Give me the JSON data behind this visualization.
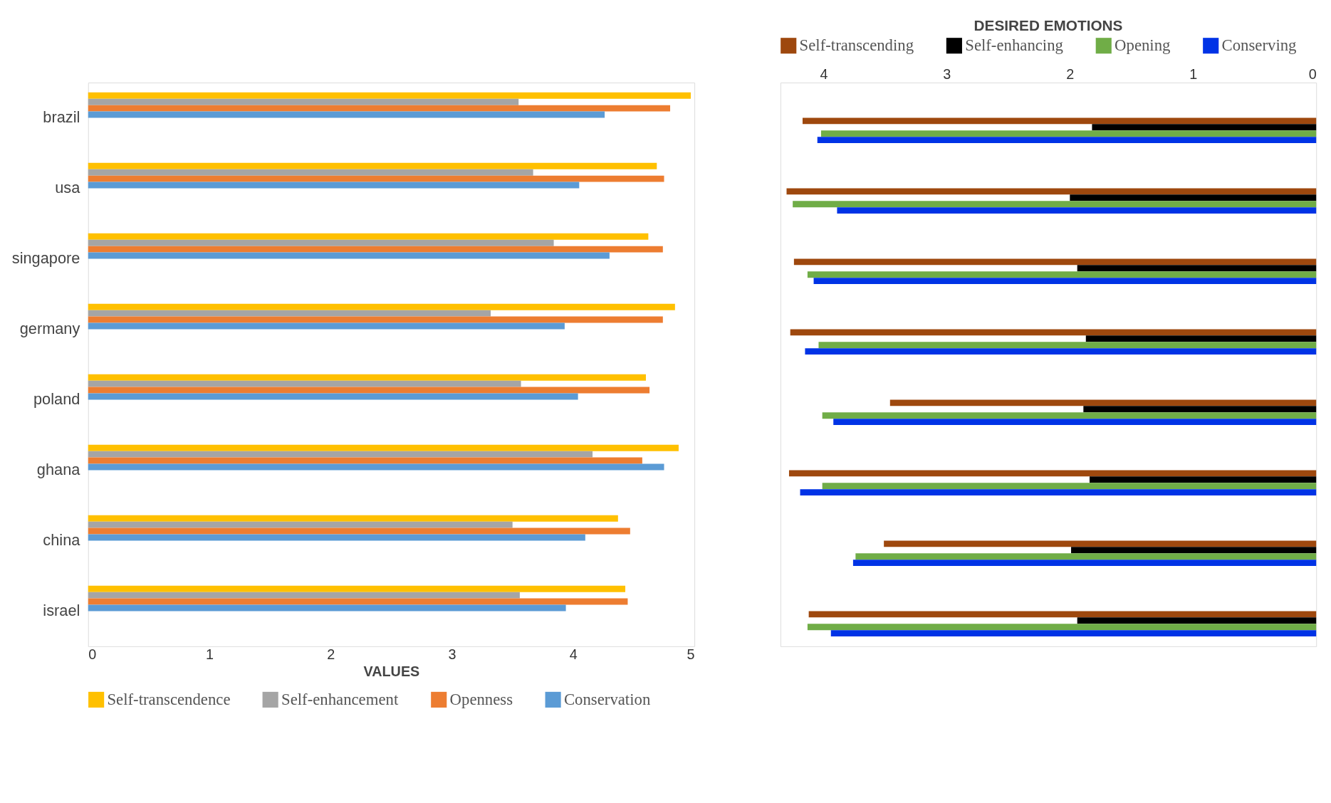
{
  "chart_data": [
    {
      "type": "bar",
      "orientation": "horizontal",
      "xlabel": "VALUES",
      "legend": "bottom",
      "grid": false,
      "categories": [
        "brazil",
        "usa",
        "singapore",
        "germany",
        "poland",
        "ghana",
        "china",
        "israel"
      ],
      "xlim": [
        0,
        5
      ],
      "xticks": [
        0,
        1,
        2,
        3,
        4,
        5
      ],
      "series": [
        {
          "name": "Self-transcendence",
          "color": "#ffc000",
          "values": [
            4.97,
            4.69,
            4.62,
            4.84,
            4.6,
            4.87,
            4.37,
            4.43
          ]
        },
        {
          "name": "Self-enhancement",
          "color": "#a5a5a5",
          "values": [
            3.55,
            3.67,
            3.84,
            3.32,
            3.57,
            4.16,
            3.5,
            3.56
          ]
        },
        {
          "name": "Openness",
          "color": "#ed7d31",
          "values": [
            4.8,
            4.75,
            4.74,
            4.74,
            4.63,
            4.57,
            4.47,
            4.45
          ]
        },
        {
          "name": "Conservation",
          "color": "#5b9bd5",
          "values": [
            4.26,
            4.05,
            4.3,
            3.93,
            4.04,
            4.75,
            4.1,
            3.94
          ]
        }
      ]
    },
    {
      "type": "bar",
      "orientation": "horizontal",
      "title": "DESIRED EMOTIONS",
      "legend": "top",
      "grid": false,
      "tick_labels": "x",
      "categories": [
        null,
        null,
        null,
        null,
        null,
        null,
        null,
        null
      ],
      "xlim": [
        4.35,
        0
      ],
      "xticks": [
        4,
        3,
        2,
        1,
        0
      ],
      "series": [
        {
          "name": "Self-transcending",
          "color": "#9e480e",
          "values": [
            4.17,
            4.3,
            4.24,
            4.27,
            3.46,
            4.28,
            3.51,
            4.12
          ]
        },
        {
          "name": "Self-enhancing",
          "color": "#000000",
          "values": [
            1.82,
            2.0,
            1.94,
            1.87,
            1.89,
            1.84,
            1.99,
            1.94
          ]
        },
        {
          "name": "Opening",
          "color": "#70ad47",
          "values": [
            4.02,
            4.25,
            4.13,
            4.04,
            4.01,
            4.01,
            3.74,
            4.13
          ]
        },
        {
          "name": "Conserving",
          "color": "#0033e6",
          "values": [
            4.05,
            3.89,
            4.08,
            4.15,
            3.92,
            4.19,
            3.76,
            3.94
          ]
        }
      ]
    }
  ]
}
